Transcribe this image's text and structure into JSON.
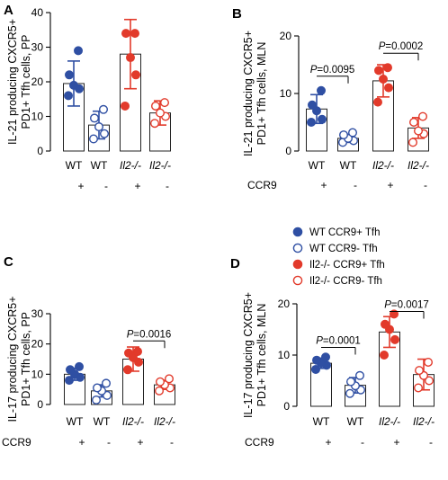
{
  "figure": {
    "colors": {
      "wt": "#2f4fa3",
      "ko": "#e23a2b",
      "bar_stroke": "#222222"
    },
    "legend": [
      {
        "label": "WT CCR9+ Tfh",
        "color": "#2f4fa3",
        "filled": true
      },
      {
        "label": "WT CCR9- Tfh",
        "color": "#2f4fa3",
        "filled": false
      },
      {
        "label": "Il2-/- CCR9+ Tfh",
        "color": "#e23a2b",
        "filled": true
      },
      {
        "label": "Il2-/- CCR9- Tfh",
        "color": "#e23a2b",
        "filled": false
      }
    ]
  },
  "chart_data": [
    {
      "panel": "A",
      "type": "bar",
      "ylabel_lines": [
        "IL-21 producing CXCR5+",
        "PD1+ Tfh cells, PP"
      ],
      "ylim": [
        0,
        40
      ],
      "yticks": [
        0,
        10,
        20,
        30,
        40
      ],
      "categories": [
        "WT",
        "WT",
        "Il2-/-",
        "Il2-/-"
      ],
      "ccr9_label": "",
      "ccr9_signs": [
        "+",
        "-",
        "+",
        "-"
      ],
      "bars": [
        19.5,
        7.5,
        28,
        11
      ],
      "err": [
        6.5,
        4,
        10,
        3.5
      ],
      "points": [
        [
          16,
          18,
          19,
          22,
          29
        ],
        [
          3.5,
          5,
          7,
          9.5,
          12
        ],
        [
          13,
          22,
          27,
          34,
          34
        ],
        [
          8,
          10,
          11,
          13,
          14
        ]
      ],
      "annotations": []
    },
    {
      "panel": "B",
      "type": "bar",
      "ylabel_lines": [
        "IL-21 producing CXCR5+",
        "PD1+ Tfh cells, MLN"
      ],
      "ylim": [
        0,
        20
      ],
      "yticks": [
        0,
        10,
        20
      ],
      "categories": [
        "WT",
        "WT",
        "Il2-/-",
        "Il2-/-"
      ],
      "ccr9_label": "CCR9",
      "ccr9_signs": [
        "+",
        "-",
        "+",
        "-"
      ],
      "bars": [
        7.3,
        2.2,
        12.2,
        4
      ],
      "err": [
        2.5,
        0.7,
        2.8,
        1.8
      ],
      "points": [
        [
          5,
          5.5,
          7,
          8,
          10.5
        ],
        [
          1.5,
          1.8,
          2.2,
          2.8,
          3.2
        ],
        [
          8.5,
          11,
          12.5,
          14,
          14.5
        ],
        [
          1.5,
          3,
          3.5,
          5,
          6
        ]
      ],
      "annotations": [
        {
          "p_label": "P",
          "p_value": "=0.0095",
          "from": 0,
          "to": 1,
          "y": 13
        },
        {
          "p_label": "P",
          "p_value": "=0.0002",
          "from": 2,
          "to": 3,
          "y": 17
        }
      ]
    },
    {
      "panel": "C",
      "type": "bar",
      "ylabel_lines": [
        "IL-17 producing CXCR5+",
        "PD1+ Tfh cells, PP"
      ],
      "ylim": [
        0,
        30
      ],
      "yticks": [
        0,
        10,
        20,
        30
      ],
      "categories": [
        "WT",
        "WT",
        "Il2-/-",
        "Il2-/-"
      ],
      "ccr9_label": "CCR9",
      "ccr9_signs": [
        "+",
        "-",
        "+",
        "-"
      ],
      "bars": [
        10,
        4.5,
        15,
        6.5
      ],
      "err": [
        2,
        2,
        4,
        1.5
      ],
      "points": [
        [
          8,
          9,
          10,
          11.5,
          12.5
        ],
        [
          1.5,
          3,
          4.5,
          5.5,
          7
        ],
        [
          11.5,
          14,
          15.5,
          17,
          17.5
        ],
        [
          4.5,
          5.5,
          6.5,
          7.5,
          8.5
        ]
      ],
      "annotations": [
        {
          "p_label": "P",
          "p_value": "=0.0016",
          "from": 2,
          "to": 3,
          "y": 21
        }
      ]
    },
    {
      "panel": "D",
      "type": "bar",
      "ylabel_lines": [
        "IL-17 producing CXCR5+",
        "PD1+ Tfh cells, MLN"
      ],
      "ylim": [
        0,
        20
      ],
      "yticks": [
        0,
        10,
        20
      ],
      "categories": [
        "WT",
        "WT",
        "Il2-/-",
        "Il2-/-"
      ],
      "ccr9_label": "CCR9",
      "ccr9_signs": [
        "+",
        "-",
        "+",
        "-"
      ],
      "bars": [
        8.4,
        4.1,
        14.5,
        6.2
      ],
      "err": [
        1,
        1.5,
        3,
        3
      ],
      "points": [
        [
          7.2,
          8,
          8.4,
          9,
          9.6
        ],
        [
          2.5,
          3.2,
          4,
          4.8,
          6
        ],
        [
          10,
          13,
          15,
          16,
          18
        ],
        [
          3.6,
          5,
          6,
          7,
          8.6
        ]
      ],
      "annotations": [
        {
          "p_label": "P",
          "p_value": "=0.0001",
          "from": 0,
          "to": 1,
          "y": 11.5
        },
        {
          "p_label": "P",
          "p_value": "=0.0017",
          "from": 2,
          "to": 3,
          "y": 18.5
        }
      ]
    }
  ]
}
